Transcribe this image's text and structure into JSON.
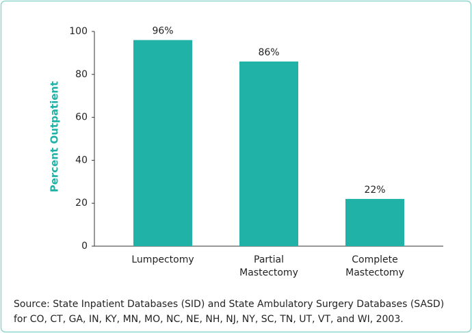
{
  "chart_data": {
    "type": "bar",
    "categories": [
      "Lumpectomy",
      "Partial Mastectomy",
      "Complete Mastectomy"
    ],
    "values": [
      96,
      86,
      22
    ],
    "value_labels": [
      "96%",
      "86%",
      "22%"
    ],
    "color": "#20b2a6",
    "ylabel": "Percent Outpatient",
    "ylim": [
      0,
      100
    ],
    "yticks": [
      0,
      20,
      40,
      60,
      80,
      100
    ],
    "source": [
      "Source: State Inpatient Databases (SID) and State Ambulatory Surgery Databases (SASD)",
      "for CO, CT, GA, IN, KY, MN, MO, NC, NE, NH, NJ, NY, SC, TN, UT, VT, and WI, 2003."
    ]
  }
}
